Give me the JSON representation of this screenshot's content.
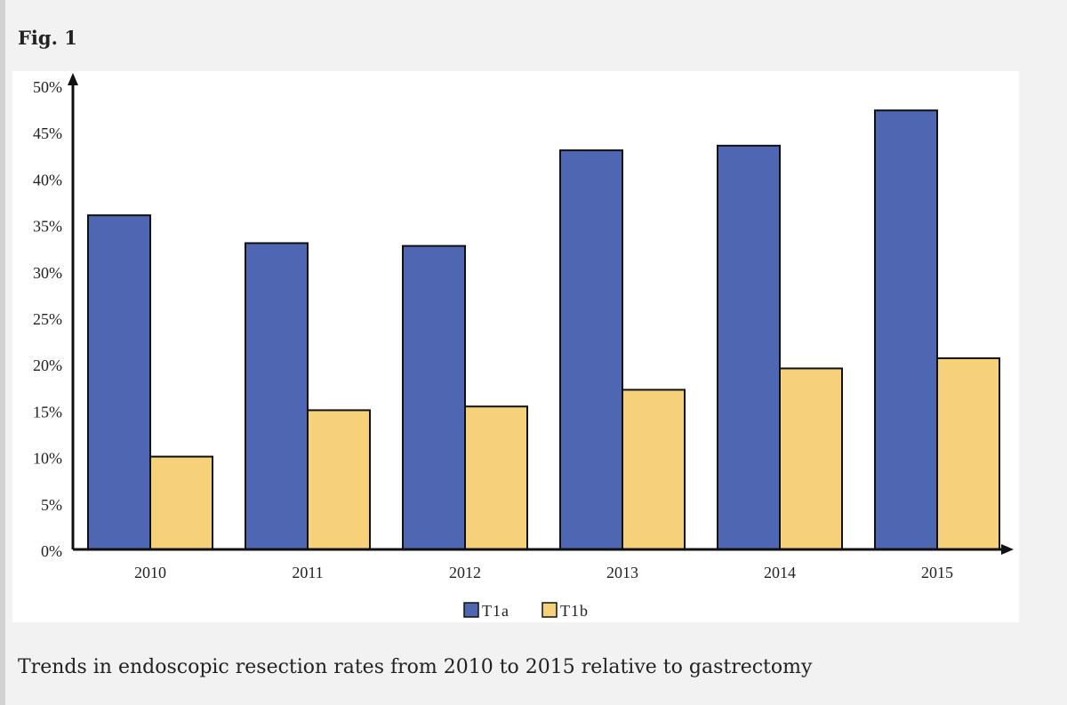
{
  "figure": {
    "label": "Fig. 1",
    "caption": "Trends in endoscopic resection rates from 2010 to 2015 relative to gastrectomy"
  },
  "chart_data": {
    "type": "bar",
    "title": "",
    "xlabel": "",
    "ylabel": "",
    "categories": [
      "2010",
      "2011",
      "2012",
      "2013",
      "2014",
      "2015"
    ],
    "series": [
      {
        "name": "T1a",
        "color": "#4f67b2",
        "values": [
          36,
          33,
          32.7,
          43,
          43.5,
          47.3
        ]
      },
      {
        "name": "T1b",
        "color": "#f7d07a",
        "values": [
          10,
          15,
          15.4,
          17.2,
          19.5,
          20.6
        ]
      }
    ],
    "ylim": [
      0,
      50
    ],
    "yticks": [
      "0%",
      "5%",
      "10%",
      "15%",
      "20%",
      "25%",
      "30%",
      "35%",
      "40%",
      "45%",
      "50%"
    ],
    "grid": false,
    "legend_position": "bottom-center"
  }
}
